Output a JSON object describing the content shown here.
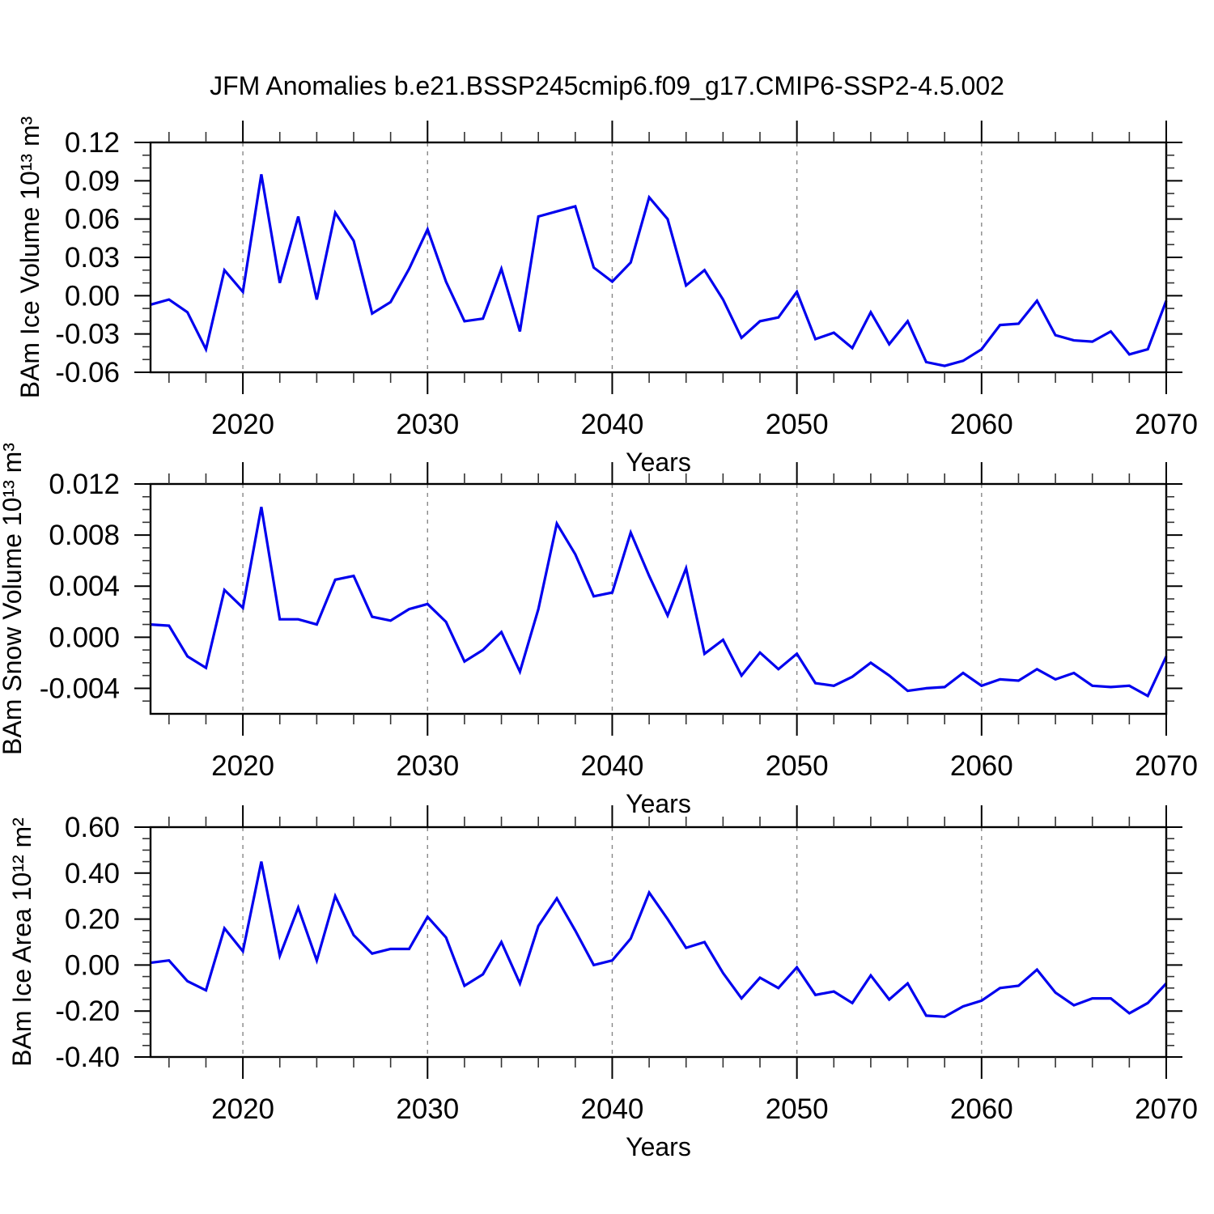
{
  "title": "JFM Anomalies b.e21.BSSP245cmip6.f09_g17.CMIP6-SSP2-4.5.002",
  "colors": {
    "line": "#0000EE",
    "axis": "#000000",
    "minor_tick": "#333333",
    "grid": "#888888",
    "background": "#ffffff"
  },
  "years": [
    2015,
    2016,
    2017,
    2018,
    2019,
    2020,
    2021,
    2022,
    2023,
    2024,
    2025,
    2026,
    2027,
    2028,
    2029,
    2030,
    2031,
    2032,
    2033,
    2034,
    2035,
    2036,
    2037,
    2038,
    2039,
    2040,
    2041,
    2042,
    2043,
    2044,
    2045,
    2046,
    2047,
    2048,
    2049,
    2050,
    2051,
    2052,
    2053,
    2054,
    2055,
    2056,
    2057,
    2058,
    2059,
    2060,
    2061,
    2062,
    2063,
    2064,
    2065,
    2066,
    2067,
    2068,
    2069,
    2070
  ],
  "chart_data": [
    {
      "type": "line",
      "id": "ice-volume",
      "ylabel": "BAm Ice Volume 10¹³ m³",
      "xlabel": "Years",
      "ylim": [
        -0.06,
        0.12
      ],
      "yticks": [
        0.12,
        0.09,
        0.06,
        0.03,
        0.0,
        -0.03,
        -0.06
      ],
      "ytick_labels": [
        "0.12",
        "0.09",
        "0.06",
        "0.03",
        "0.00",
        "-0.03",
        "-0.06"
      ],
      "y_minor_step": 0.01,
      "xlim": [
        2015,
        2070
      ],
      "xticks": [
        2020,
        2030,
        2040,
        2050,
        2060,
        2070
      ],
      "xtick_labels": [
        "2020",
        "2030",
        "2040",
        "2050",
        "2060",
        "2070"
      ],
      "x_minor_step": 2,
      "grid_x": [
        2020,
        2030,
        2040,
        2050,
        2060
      ],
      "grid_style": "dashed",
      "legend": "none",
      "values": [
        -0.007,
        -0.003,
        -0.013,
        -0.042,
        0.02,
        0.003,
        0.095,
        0.01,
        0.062,
        -0.003,
        0.065,
        0.043,
        -0.014,
        -0.005,
        0.021,
        0.052,
        0.011,
        -0.02,
        -0.018,
        0.021,
        -0.028,
        0.062,
        0.066,
        0.07,
        0.022,
        0.011,
        0.026,
        0.077,
        0.06,
        0.008,
        0.02,
        -0.003,
        -0.033,
        -0.02,
        -0.017,
        0.003,
        -0.034,
        -0.029,
        -0.041,
        -0.013,
        -0.038,
        -0.02,
        -0.052,
        -0.055,
        -0.051,
        -0.042,
        -0.023,
        -0.022,
        -0.004,
        -0.031,
        -0.035,
        -0.036,
        -0.028,
        -0.046,
        -0.042,
        -0.004
      ]
    },
    {
      "type": "line",
      "id": "snow-volume",
      "ylabel": "BAm Snow Volume 10¹³ m³",
      "xlabel": "Years",
      "ylim": [
        -0.006,
        0.012
      ],
      "yticks": [
        0.012,
        0.008,
        0.004,
        0.0,
        -0.004
      ],
      "ytick_labels": [
        "0.012",
        "0.008",
        "0.004",
        "0.000",
        "-0.004"
      ],
      "y_minor_step": 0.001,
      "xlim": [
        2015,
        2070
      ],
      "xticks": [
        2020,
        2030,
        2040,
        2050,
        2060,
        2070
      ],
      "xtick_labels": [
        "2020",
        "2030",
        "2040",
        "2050",
        "2060",
        "2070"
      ],
      "x_minor_step": 2,
      "grid_x": [
        2020,
        2030,
        2040,
        2050,
        2060
      ],
      "grid_style": "dashed",
      "legend": "none",
      "values": [
        0.001,
        0.0009,
        -0.0015,
        -0.0024,
        0.0037,
        0.0023,
        0.0102,
        0.0014,
        0.0014,
        0.001,
        0.0045,
        0.0048,
        0.0016,
        0.0013,
        0.0022,
        0.0026,
        0.0012,
        -0.0019,
        -0.001,
        0.0004,
        -0.0027,
        0.0022,
        0.0089,
        0.0065,
        0.0032,
        0.0035,
        0.0082,
        0.0048,
        0.0017,
        0.0054,
        -0.0013,
        -0.0002,
        -0.003,
        -0.0012,
        -0.0025,
        -0.0013,
        -0.0036,
        -0.0038,
        -0.0031,
        -0.002,
        -0.003,
        -0.0042,
        -0.004,
        -0.0039,
        -0.0028,
        -0.0038,
        -0.0033,
        -0.0034,
        -0.0025,
        -0.0033,
        -0.0028,
        -0.0038,
        -0.0039,
        -0.0038,
        -0.0046,
        -0.0015
      ]
    },
    {
      "type": "line",
      "id": "ice-area",
      "ylabel": "BAm Ice Area 10¹² m²",
      "xlabel": "Years",
      "ylim": [
        -0.4,
        0.6
      ],
      "yticks": [
        0.6,
        0.4,
        0.2,
        0.0,
        -0.2,
        -0.4
      ],
      "ytick_labels": [
        "0.60",
        "0.40",
        "0.20",
        "0.00",
        "-0.20",
        "-0.40"
      ],
      "y_minor_step": 0.05,
      "xlim": [
        2015,
        2070
      ],
      "xticks": [
        2020,
        2030,
        2040,
        2050,
        2060,
        2070
      ],
      "xtick_labels": [
        "2020",
        "2030",
        "2040",
        "2050",
        "2060",
        "2070"
      ],
      "x_minor_step": 2,
      "grid_x": [
        2020,
        2030,
        2040,
        2050,
        2060
      ],
      "grid_style": "dashed",
      "legend": "none",
      "values": [
        0.01,
        0.02,
        -0.07,
        -0.11,
        0.16,
        0.06,
        0.45,
        0.04,
        0.25,
        0.02,
        0.3,
        0.13,
        0.05,
        0.07,
        0.07,
        0.21,
        0.12,
        -0.09,
        -0.04,
        0.1,
        -0.08,
        0.17,
        0.29,
        0.15,
        0.0,
        0.02,
        0.115,
        0.315,
        0.2,
        0.075,
        0.1,
        -0.035,
        -0.145,
        -0.055,
        -0.1,
        -0.01,
        -0.13,
        -0.115,
        -0.165,
        -0.045,
        -0.15,
        -0.08,
        -0.22,
        -0.225,
        -0.18,
        -0.155,
        -0.1,
        -0.09,
        -0.02,
        -0.12,
        -0.175,
        -0.145,
        -0.145,
        -0.21,
        -0.165,
        -0.08
      ]
    }
  ]
}
